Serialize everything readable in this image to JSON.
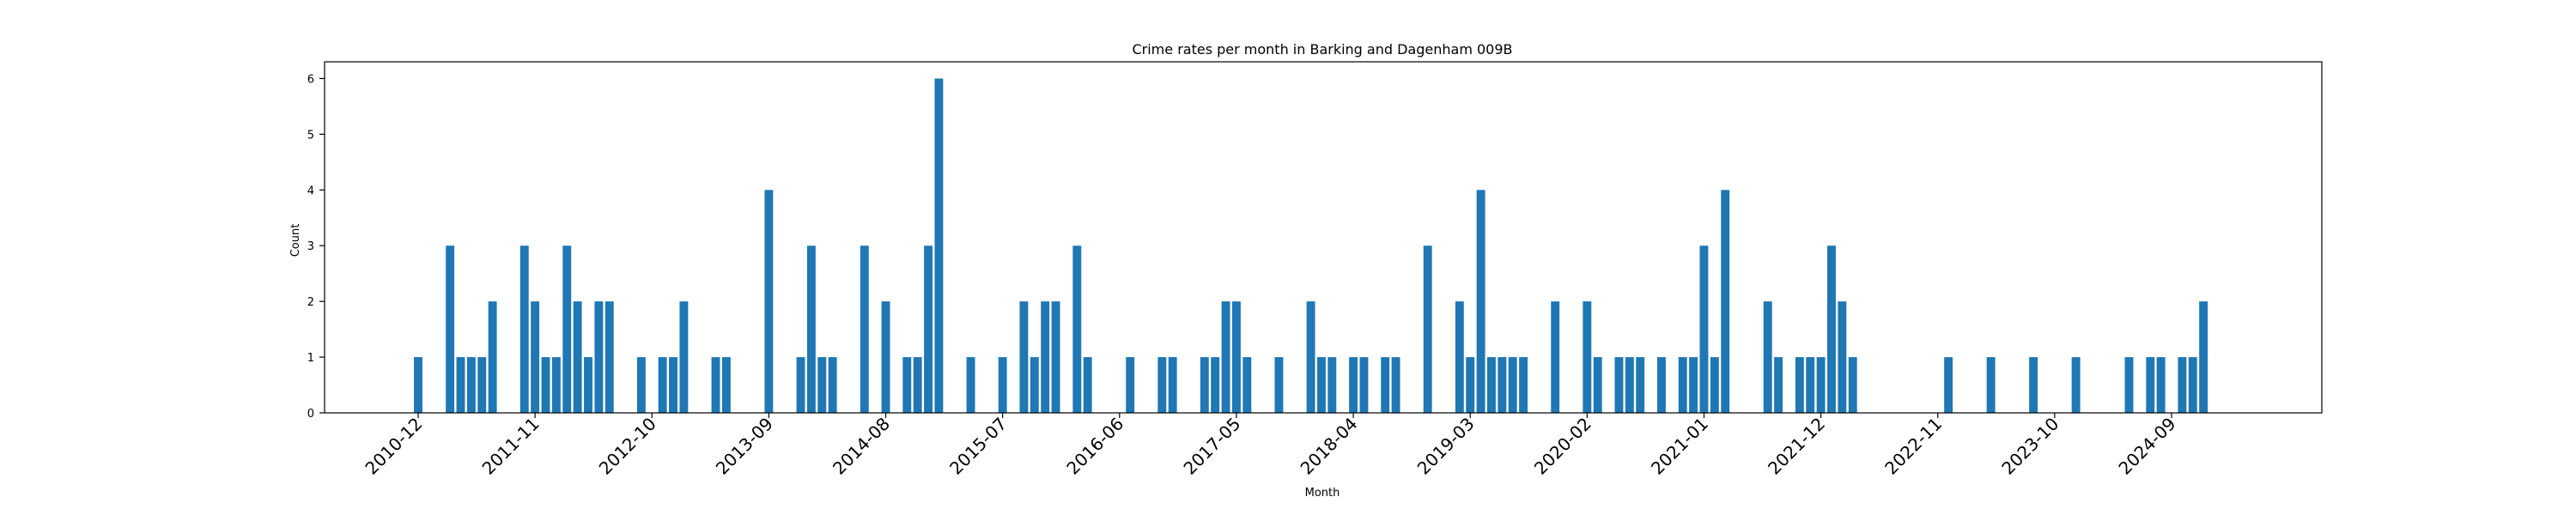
{
  "chart_data": {
    "type": "bar",
    "title": "Crime rates per month in Barking and Dagenham 009B",
    "xlabel": "Month",
    "ylabel": "Count",
    "ylim": [
      0,
      6.3
    ],
    "yticks": [
      0,
      1,
      2,
      3,
      4,
      5,
      6
    ],
    "xtick_labels": [
      "2010-12",
      "2011-11",
      "2012-10",
      "2013-09",
      "2014-08",
      "2015-07",
      "2016-06",
      "2017-05",
      "2018-04",
      "2019-03",
      "2020-02",
      "2021-01",
      "2021-12",
      "2022-11",
      "2023-10",
      "2024-09"
    ],
    "grid": false,
    "bar_color": "#1f77b4",
    "x": [
      "2010-12",
      "2011-03",
      "2011-04",
      "2011-05",
      "2011-06",
      "2011-07",
      "2011-10",
      "2011-11",
      "2011-12",
      "2012-01",
      "2012-02",
      "2012-03",
      "2012-04",
      "2012-05",
      "2012-06",
      "2012-09",
      "2012-11",
      "2012-12",
      "2013-01",
      "2013-04",
      "2013-05",
      "2013-09",
      "2013-12",
      "2014-01",
      "2014-02",
      "2014-03",
      "2014-06",
      "2014-08",
      "2014-10",
      "2014-11",
      "2014-12",
      "2015-01",
      "2015-04",
      "2015-07",
      "2015-09",
      "2015-10",
      "2015-11",
      "2015-12",
      "2016-02",
      "2016-03",
      "2016-07",
      "2016-10",
      "2016-11",
      "2017-02",
      "2017-03",
      "2017-04",
      "2017-05",
      "2017-06",
      "2017-09",
      "2017-12",
      "2018-01",
      "2018-02",
      "2018-04",
      "2018-05",
      "2018-07",
      "2018-08",
      "2018-11",
      "2019-02",
      "2019-03",
      "2019-04",
      "2019-05",
      "2019-06",
      "2019-07",
      "2019-08",
      "2019-11",
      "2020-02",
      "2020-03",
      "2020-05",
      "2020-06",
      "2020-07",
      "2020-09",
      "2020-11",
      "2020-12",
      "2021-01",
      "2021-02",
      "2021-03",
      "2021-07",
      "2021-08",
      "2021-10",
      "2021-11",
      "2021-12",
      "2022-01",
      "2022-02",
      "2022-03",
      "2022-12",
      "2023-04",
      "2023-08",
      "2023-12",
      "2024-05",
      "2024-07",
      "2024-08",
      "2024-10",
      "2024-11",
      "2024-12"
    ],
    "values": [
      1,
      3,
      1,
      1,
      1,
      2,
      3,
      2,
      1,
      1,
      3,
      2,
      1,
      2,
      2,
      1,
      1,
      1,
      2,
      1,
      1,
      4,
      1,
      3,
      1,
      1,
      3,
      2,
      1,
      1,
      3,
      6,
      1,
      1,
      2,
      1,
      2,
      2,
      3,
      1,
      1,
      1,
      1,
      1,
      1,
      2,
      2,
      1,
      1,
      2,
      1,
      1,
      1,
      1,
      1,
      1,
      3,
      2,
      1,
      4,
      1,
      1,
      1,
      1,
      2,
      2,
      1,
      1,
      1,
      1,
      1,
      1,
      1,
      3,
      1,
      4,
      2,
      1,
      1,
      1,
      1,
      3,
      2,
      1,
      1,
      1,
      1,
      1,
      1,
      1,
      1,
      1,
      1,
      2
    ]
  }
}
